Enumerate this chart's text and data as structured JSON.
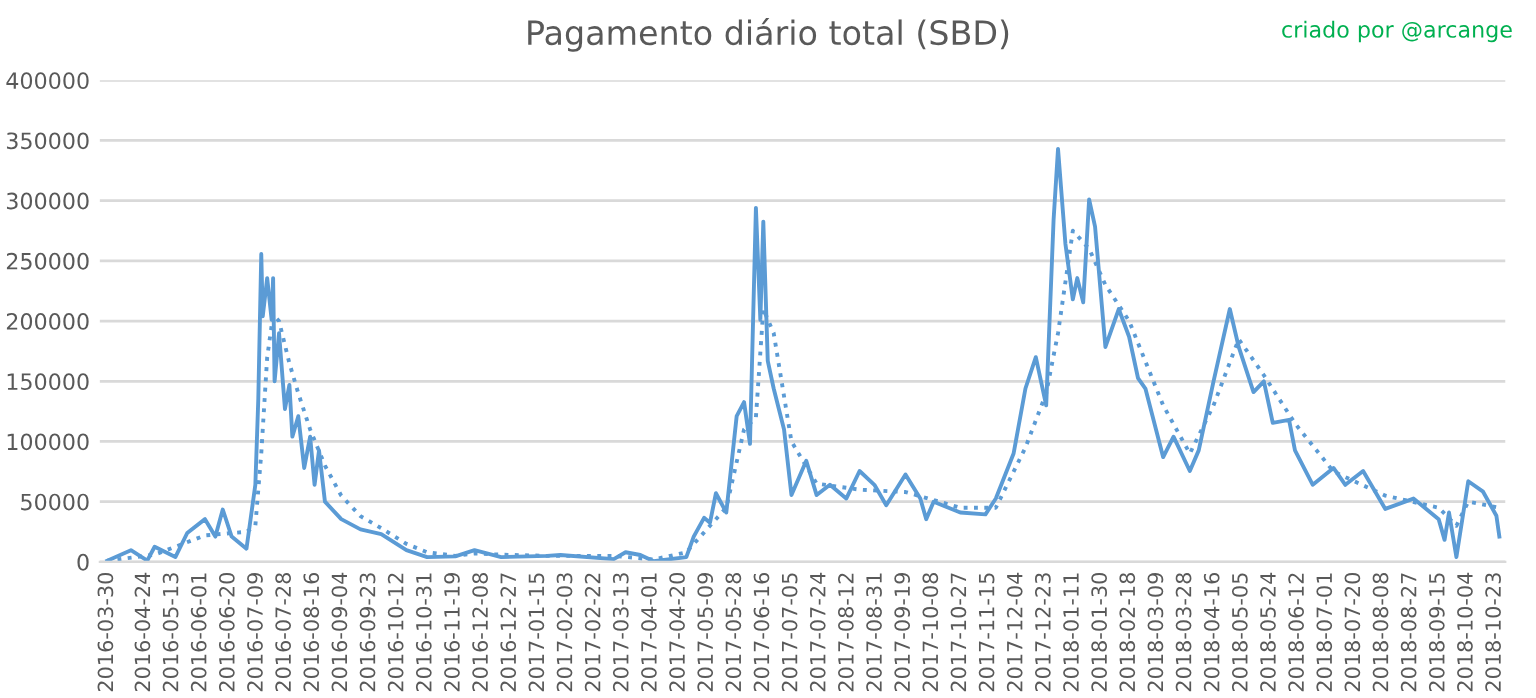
{
  "chart_data": {
    "type": "line",
    "title": "Pagamento diário total (SBD)",
    "annotations": [
      "criado por @arcange"
    ],
    "xlim": [
      "2016-03-25",
      "2018-10-30"
    ],
    "xticks": [
      "2016-03-30",
      "2016-04-24",
      "2016-05-13",
      "2016-06-01",
      "2016-06-20",
      "2016-07-09",
      "2016-07-28",
      "2016-08-16",
      "2016-09-04",
      "2016-09-23",
      "2016-10-12",
      "2016-10-31",
      "2016-11-19",
      "2016-12-08",
      "2016-12-27",
      "2017-01-15",
      "2017-02-03",
      "2017-02-22",
      "2017-03-13",
      "2017-04-01",
      "2017-04-20",
      "2017-05-09",
      "2017-05-28",
      "2017-06-16",
      "2017-07-05",
      "2017-07-24",
      "2017-08-12",
      "2017-08-31",
      "2017-09-19",
      "2017-10-08",
      "2017-10-27",
      "2017-11-15",
      "2017-12-04",
      "2017-12-23",
      "2018-01-11",
      "2018-01-30",
      "2018-02-18",
      "2018-03-09",
      "2018-03-28",
      "2018-04-16",
      "2018-05-05",
      "2018-05-24",
      "2018-06-12",
      "2018-07-01",
      "2018-07-20",
      "2018-08-08",
      "2018-08-27",
      "2018-09-15",
      "2018-10-04",
      "2018-10-23"
    ],
    "ylim": [
      0,
      400000
    ],
    "yticks": [
      0,
      50000,
      100000,
      150000,
      200000,
      250000,
      300000,
      350000,
      400000
    ],
    "grid": "y",
    "legend": false,
    "series": [
      {
        "color": "#5b9bd5",
        "line_style": "solid",
        "x": [
          "2016-03-30",
          "2016-04-15",
          "2016-04-26",
          "2016-05-01",
          "2016-05-15",
          "2016-05-23",
          "2016-06-04",
          "2016-06-11",
          "2016-06-16",
          "2016-06-22",
          "2016-07-02",
          "2016-07-08",
          "2016-07-10",
          "2016-07-12",
          "2016-07-13",
          "2016-07-16",
          "2016-07-19",
          "2016-07-20",
          "2016-07-21",
          "2016-07-24",
          "2016-07-28",
          "2016-07-31",
          "2016-08-02",
          "2016-08-06",
          "2016-08-10",
          "2016-08-14",
          "2016-08-17",
          "2016-08-20",
          "2016-08-24",
          "2016-09-04",
          "2016-09-17",
          "2016-10-01",
          "2016-10-18",
          "2016-11-01",
          "2016-11-20",
          "2016-12-03",
          "2016-12-21",
          "2017-01-21",
          "2017-01-30",
          "2017-03-07",
          "2017-03-15",
          "2017-03-25",
          "2017-04-03",
          "2017-04-25",
          "2017-04-30",
          "2017-05-07",
          "2017-05-11",
          "2017-05-15",
          "2017-05-22",
          "2017-05-29",
          "2017-06-03",
          "2017-06-07",
          "2017-06-11",
          "2017-06-14",
          "2017-06-16",
          "2017-06-19",
          "2017-06-23",
          "2017-06-30",
          "2017-07-05",
          "2017-07-15",
          "2017-07-22",
          "2017-07-31",
          "2017-08-11",
          "2017-08-20",
          "2017-08-30",
          "2017-09-07",
          "2017-09-20",
          "2017-09-30",
          "2017-10-04",
          "2017-10-09",
          "2017-10-27",
          "2017-11-13",
          "2017-11-20",
          "2017-12-02",
          "2017-12-10",
          "2017-12-17",
          "2017-12-24",
          "2017-12-29",
          "2018-01-01",
          "2018-01-06",
          "2018-01-11",
          "2018-01-14",
          "2018-01-18",
          "2018-01-22",
          "2018-01-26",
          "2018-02-02",
          "2018-02-11",
          "2018-02-18",
          "2018-02-24",
          "2018-03-01",
          "2018-03-13",
          "2018-03-20",
          "2018-03-31",
          "2018-04-06",
          "2018-04-16",
          "2018-04-27",
          "2018-05-03",
          "2018-05-13",
          "2018-05-20",
          "2018-05-26",
          "2018-06-06",
          "2018-06-10",
          "2018-06-22",
          "2018-07-06",
          "2018-07-14",
          "2018-07-26",
          "2018-08-10",
          "2018-08-29",
          "2018-09-15",
          "2018-09-19",
          "2018-09-22",
          "2018-09-27",
          "2018-10-05",
          "2018-10-15",
          "2018-10-24",
          "2018-10-26"
        ],
        "values": [
          1000,
          9700,
          1100,
          12600,
          4000,
          24000,
          35500,
          21000,
          43500,
          21000,
          11000,
          64000,
          135500,
          255700,
          204000,
          235700,
          201000,
          235700,
          150000,
          190000,
          127000,
          147000,
          104000,
          121000,
          78000,
          104000,
          64000,
          92600,
          50000,
          35500,
          27000,
          23000,
          9700,
          4000,
          4600,
          9700,
          4000,
          5000,
          5700,
          2300,
          8000,
          5700,
          500,
          4000,
          21000,
          36600,
          32600,
          57000,
          41000,
          121000,
          132700,
          98000,
          294000,
          201000,
          282600,
          167000,
          144000,
          110000,
          55500,
          84000,
          55500,
          64000,
          52600,
          75500,
          64000,
          47000,
          72600,
          52600,
          35500,
          50000,
          41000,
          39500,
          52600,
          90000,
          144000,
          170000,
          130000,
          284000,
          343000,
          264000,
          218000,
          235700,
          215600,
          301000,
          278500,
          178500,
          210000,
          187000,
          152700,
          144000,
          87000,
          104000,
          75500,
          92600,
          150000,
          210000,
          178500,
          141000,
          150000,
          115500,
          118000,
          92600,
          64000,
          78000,
          64000,
          75500,
          44000,
          52600,
          35500,
          18300,
          41000,
          4000,
          67000,
          58300,
          38300,
          21000
        ]
      },
      {
        "color": "#5b9bd5",
        "line_style": "dotted",
        "x": [
          "2016-03-30",
          "2016-05-01",
          "2016-06-04",
          "2016-07-02",
          "2016-07-08",
          "2016-07-12",
          "2016-07-16",
          "2016-07-20",
          "2016-07-24",
          "2016-07-31",
          "2016-08-06",
          "2016-08-14",
          "2016-08-24",
          "2016-09-04",
          "2016-09-17",
          "2016-10-01",
          "2016-10-18",
          "2016-11-01",
          "2016-11-20",
          "2016-12-03",
          "2016-12-21",
          "2017-01-21",
          "2017-03-07",
          "2017-04-03",
          "2017-04-25",
          "2017-05-11",
          "2017-05-22",
          "2017-06-03",
          "2017-06-11",
          "2017-06-16",
          "2017-06-23",
          "2017-07-05",
          "2017-07-22",
          "2017-08-20",
          "2017-09-20",
          "2017-10-27",
          "2017-11-20",
          "2017-12-10",
          "2017-12-24",
          "2018-01-01",
          "2018-01-11",
          "2018-01-22",
          "2018-02-02",
          "2018-02-18",
          "2018-03-13",
          "2018-03-31",
          "2018-04-16",
          "2018-05-03",
          "2018-05-20",
          "2018-06-10",
          "2018-07-06",
          "2018-08-10",
          "2018-09-15",
          "2018-09-27",
          "2018-10-05",
          "2018-10-26"
        ],
        "values": [
          1000,
          6000,
          22000,
          25000,
          30000,
          90000,
          170000,
          205000,
          200000,
          165000,
          140000,
          110000,
          80000,
          55000,
          38000,
          28000,
          15000,
          8000,
          5000,
          7000,
          6000,
          5000,
          5000,
          2000,
          8000,
          30000,
          45000,
          110000,
          120000,
          210000,
          190000,
          100000,
          65000,
          60000,
          58000,
          45000,
          45000,
          95000,
          140000,
          190000,
          275000,
          260000,
          230000,
          200000,
          130000,
          90000,
          130000,
          185000,
          155000,
          115000,
          75000,
          55000,
          45000,
          30000,
          50000,
          45000
        ]
      }
    ]
  }
}
